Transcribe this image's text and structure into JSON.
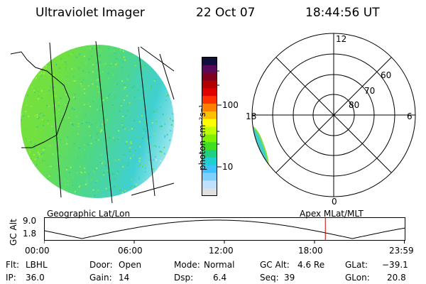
{
  "header": {
    "title": "Ultraviolet Imager",
    "date": "22 Oct 07",
    "time": "18:44:56 UT"
  },
  "colorbar": {
    "label": "photon cm⁻²s⁻¹",
    "ticks": [
      "100",
      "10"
    ],
    "colors": [
      "#101040",
      "#5a0a5a",
      "#800020",
      "#b00000",
      "#e00000",
      "#ff3000",
      "#ff8000",
      "#ffc000",
      "#ffff00",
      "#c0ff00",
      "#80f000",
      "#40e020",
      "#20d080",
      "#20d0d0",
      "#40c0ff",
      "#80d0ff",
      "#c0e0ff",
      "#e0e0e0"
    ]
  },
  "map_labels": {
    "left": "Geographic Lat/Lon",
    "right": "Apex MLat/MLT"
  },
  "polar": {
    "mlt_labels": {
      "top": "12",
      "left": "18",
      "right": "6",
      "bottom": "0"
    },
    "lat_labels": [
      "60",
      "70",
      "80"
    ]
  },
  "altitude_plot": {
    "ylabel": "GC Alt",
    "y_ticks": [
      "9.0",
      "1.8"
    ],
    "x_ticks": [
      "00:00",
      "06:00",
      "12:00",
      "18:00",
      "23:59"
    ],
    "current_time_frac": 0.78
  },
  "info": {
    "flt_label": "Flt:",
    "flt_value": "LBHL",
    "ip_label": "IP:",
    "ip_value": "36.0",
    "door_label": "Door:",
    "door_value": "Open",
    "gain_label": "Gain:",
    "gain_value": "14",
    "mode_label": "Mode:",
    "mode_value": "Normal",
    "dsp_label": "Dsp:",
    "dsp_value": "6.4",
    "gcalt_label": "GC Alt:",
    "gcalt_value": "4.6 Re",
    "seq_label": "Seq:",
    "seq_value": "39",
    "glat_label": "GLat:",
    "glat_value": "−39.1",
    "glon_label": "GLon:",
    "glon_value": "20.8"
  }
}
